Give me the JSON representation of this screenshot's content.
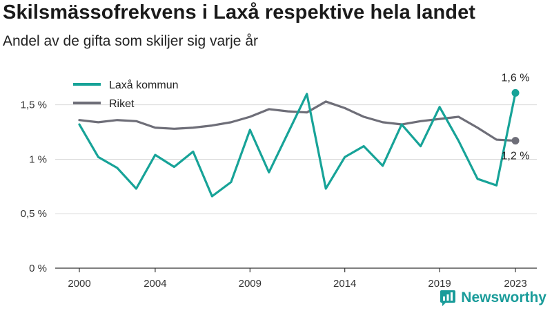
{
  "title": "Skilsmässofrekvens i Laxå respektive hela landet",
  "subtitle": "Andel av de gifta som skiljer sig varje år",
  "brand": "Newsworthy",
  "brand_icon": "newsworthy-logo-icon",
  "colors": {
    "laxa": "#17a398",
    "riket": "#6e6e78",
    "grid": "#d9d9d9",
    "axis": "#333333"
  },
  "chart_data": {
    "type": "line",
    "title": "Skilsmässofrekvens i Laxå respektive hela landet",
    "subtitle": "Andel av de gifta som skiljer sig varje år",
    "x": [
      2000,
      2001,
      2002,
      2003,
      2004,
      2005,
      2006,
      2007,
      2008,
      2009,
      2010,
      2011,
      2012,
      2013,
      2014,
      2015,
      2016,
      2017,
      2018,
      2019,
      2020,
      2021,
      2022,
      2023
    ],
    "xticks": [
      "2000",
      "2004",
      "2009",
      "2014",
      "2019",
      "2023"
    ],
    "yticks": [
      "0 %",
      "0,5 %",
      "1 %",
      "1,5 %"
    ],
    "ylim": [
      0,
      1.72
    ],
    "grid": true,
    "legend_position": "top-left",
    "series": [
      {
        "name": "Laxå kommun",
        "color": "#17a398",
        "values": [
          1.32,
          1.02,
          0.92,
          0.73,
          1.04,
          0.93,
          1.07,
          0.66,
          0.79,
          1.27,
          0.88,
          1.24,
          1.6,
          0.73,
          1.02,
          1.12,
          0.94,
          1.32,
          1.12,
          1.48,
          1.17,
          0.82,
          0.76,
          1.61
        ],
        "end_label": "1,6 %"
      },
      {
        "name": "Riket",
        "color": "#6e6e78",
        "values": [
          1.36,
          1.34,
          1.36,
          1.35,
          1.29,
          1.28,
          1.29,
          1.31,
          1.34,
          1.39,
          1.46,
          1.44,
          1.43,
          1.53,
          1.47,
          1.39,
          1.34,
          1.32,
          1.35,
          1.37,
          1.39,
          1.29,
          1.18,
          1.17
        ],
        "end_label": "1,2 %"
      }
    ]
  }
}
